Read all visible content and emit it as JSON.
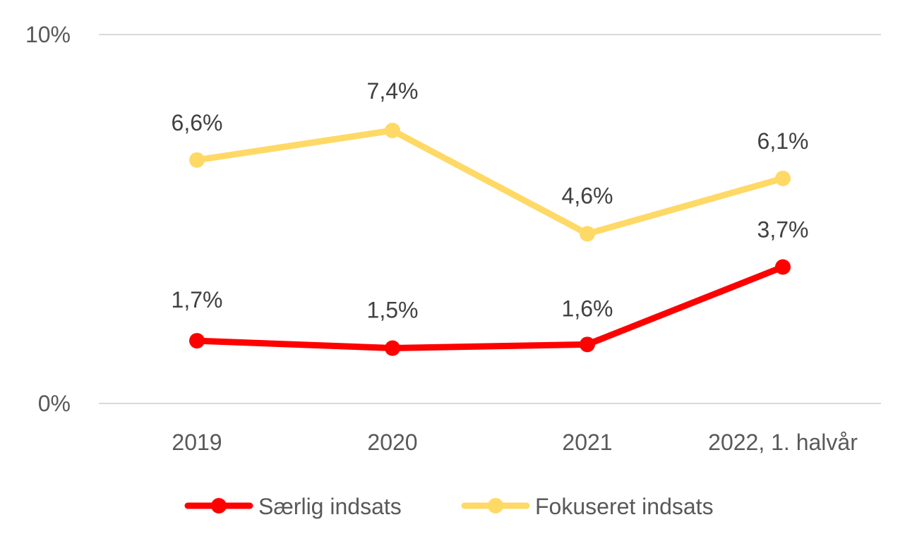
{
  "chart_data": {
    "type": "line",
    "categories": [
      "2019",
      "2020",
      "2021",
      "2022, 1. halvår"
    ],
    "series": [
      {
        "name": "Særlig indsats",
        "color": "#ff0000",
        "values": [
          1.7,
          1.5,
          1.6,
          3.7
        ],
        "labels": [
          "1,7%",
          "1,5%",
          "1,6%",
          "3,7%"
        ]
      },
      {
        "name": "Fokuseret indsats",
        "color": "#ffd966",
        "values": [
          6.6,
          7.4,
          4.6,
          6.1
        ],
        "labels": [
          "6,6%",
          "7,4%",
          "4,6%",
          "6,1%"
        ]
      }
    ],
    "ylim": [
      0,
      10
    ],
    "yticks": [
      {
        "value": 0,
        "label": "0%"
      },
      {
        "value": 10,
        "label": "10%"
      }
    ],
    "grid": true,
    "legend": "bottom"
  }
}
